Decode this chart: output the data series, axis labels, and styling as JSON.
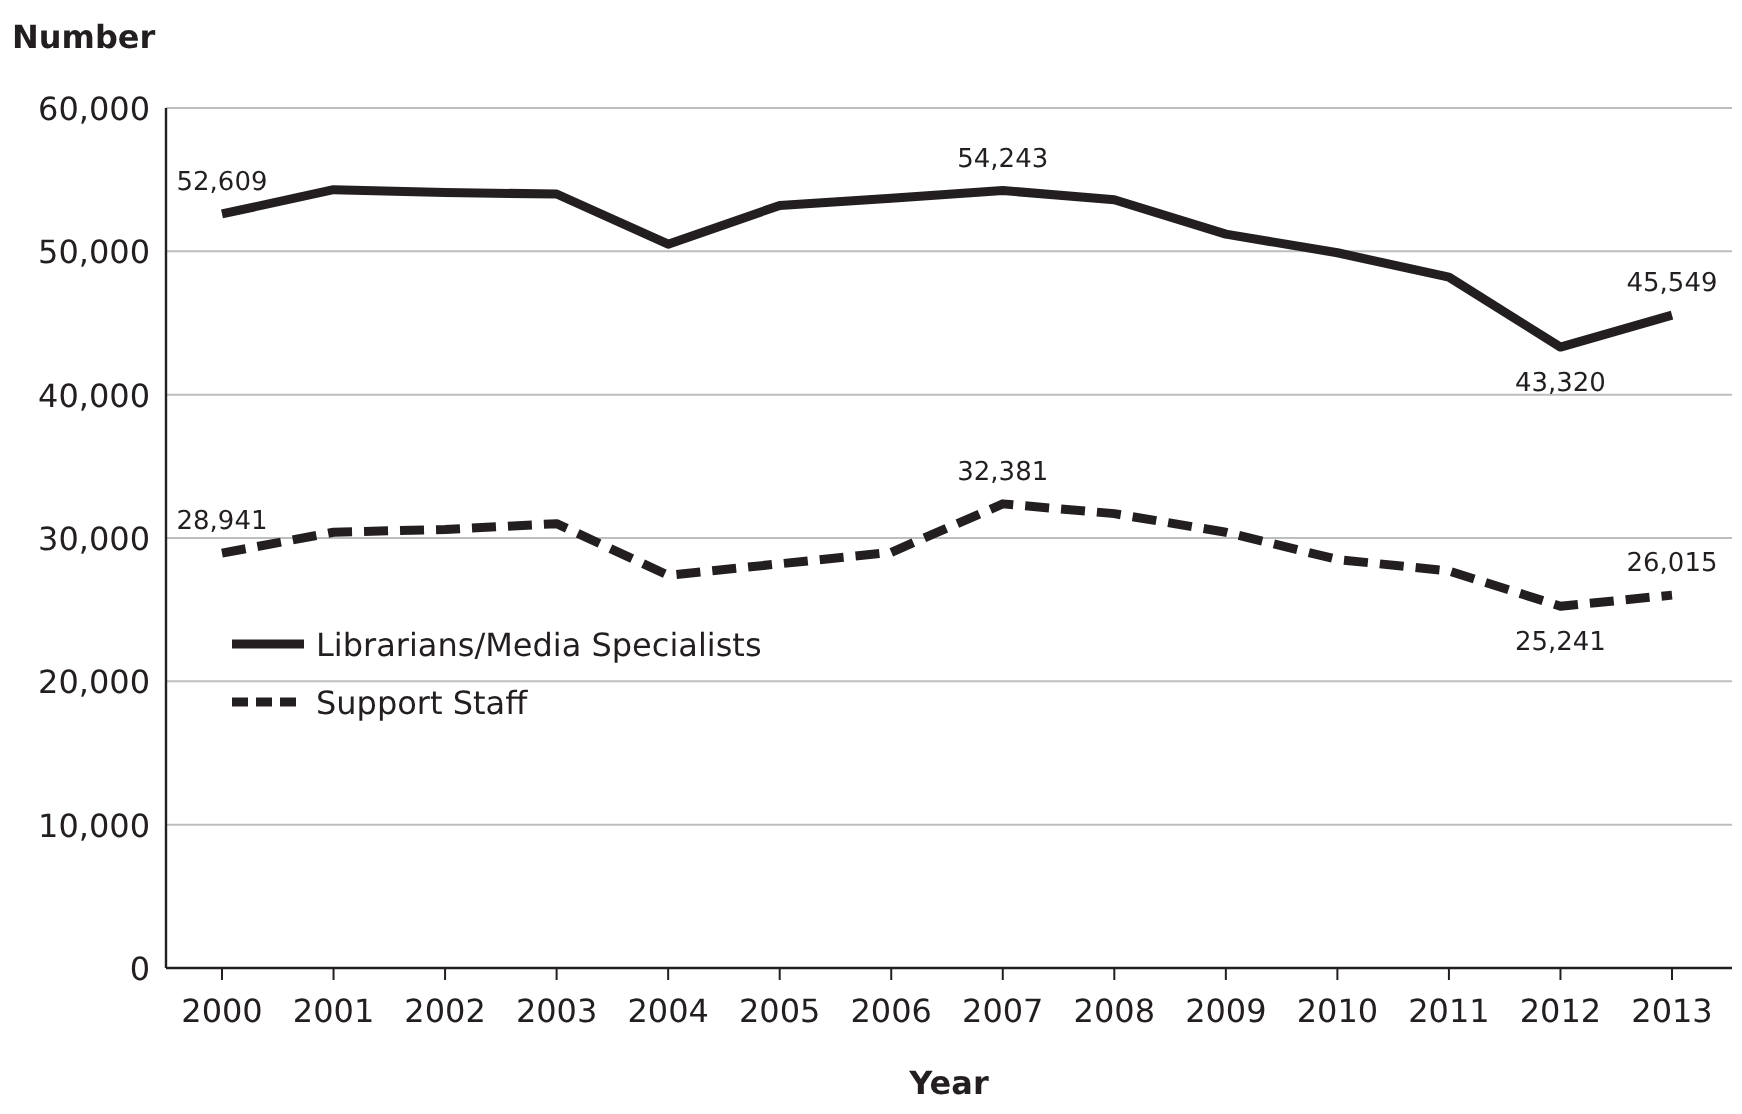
{
  "chart_data": {
    "type": "line",
    "ylabel": "Number",
    "xlabel": "Year",
    "categories": [
      "2000",
      "2001",
      "2002",
      "2003",
      "2004",
      "2005",
      "2006",
      "2007",
      "2008",
      "2009",
      "2010",
      "2011",
      "2012",
      "2013"
    ],
    "series": [
      {
        "name": "Librarians/Media Specialists",
        "color": "#231f20",
        "line_style": "solid",
        "values": [
          52609,
          54300,
          54100,
          54000,
          50500,
          53200,
          53700,
          54243,
          53600,
          51200,
          49900,
          48200,
          43320,
          45549
        ],
        "value_labels": [
          "52,609",
          null,
          null,
          null,
          null,
          null,
          null,
          "54,243",
          null,
          null,
          null,
          null,
          "43,320",
          "45,549"
        ]
      },
      {
        "name": "Support Staff",
        "color": "#231f20",
        "line_style": "dashed",
        "values": [
          28941,
          30400,
          30600,
          31000,
          27400,
          28200,
          29000,
          32381,
          31700,
          30400,
          28500,
          27700,
          25241,
          26015
        ],
        "value_labels": [
          "28,941",
          null,
          null,
          null,
          null,
          null,
          null,
          "32,381",
          null,
          null,
          null,
          null,
          "25,241",
          "26,015"
        ]
      }
    ],
    "ylim": [
      0,
      60000
    ],
    "yticks": [
      {
        "value": 0,
        "label": "0"
      },
      {
        "value": 10000,
        "label": "10,000"
      },
      {
        "value": 20000,
        "label": "20,000"
      },
      {
        "value": 30000,
        "label": "30,000"
      },
      {
        "value": 40000,
        "label": "40,000"
      },
      {
        "value": 50000,
        "label": "50,000"
      },
      {
        "value": 60000,
        "label": "60,000"
      }
    ],
    "grid": "y",
    "legend": "bottom left",
    "marker": "none"
  }
}
